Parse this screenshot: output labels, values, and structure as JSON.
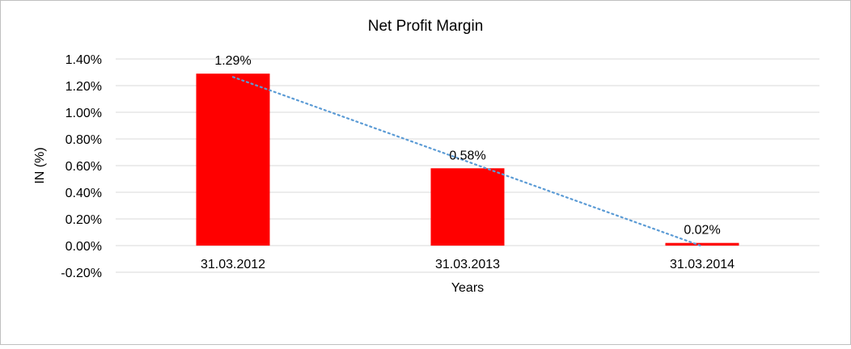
{
  "chart_data": {
    "type": "bar",
    "title": "Net Profit Margin",
    "xlabel": "Years",
    "ylabel": "IN (%)",
    "categories": [
      "31.03.2012",
      "31.03.2013",
      "31.03.2014"
    ],
    "values": [
      1.29,
      0.58,
      0.02
    ],
    "data_labels": [
      "1.29%",
      "0.58%",
      "0.02%"
    ],
    "ylim": [
      -0.2,
      1.4
    ],
    "yticks": [
      -0.2,
      0,
      0.2,
      0.4,
      0.6,
      0.8,
      1.0,
      1.2,
      1.4
    ],
    "ytick_labels": [
      "-0.20%",
      "0.00%",
      "0.20%",
      "0.40%",
      "0.60%",
      "0.80%",
      "1.00%",
      "1.20%",
      "1.40%"
    ],
    "grid": true,
    "trendline": {
      "type": "linear",
      "style": "dotted"
    },
    "colors": {
      "bar": "#FF0000",
      "trendline": "#5B9BD5",
      "grid": "#D9D9D9",
      "border": "#BFBFBF"
    }
  }
}
